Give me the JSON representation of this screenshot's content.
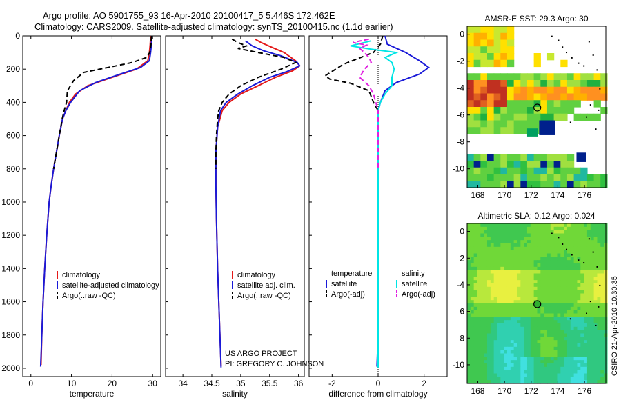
{
  "figure": {
    "title_line1": "Argo profile: AO 5901755_93 16-Apr-2010 20100417_5 5.446S 172.462E",
    "title_line2": "Climatology: CARS2009. Satellite-adjusted climatology: synTS_20100415.nc (1.1d earlier)",
    "credit_line1": "US ARGO PROJECT",
    "credit_line2": "PI: GREGORY C. JOHNSON",
    "side_stamp": "CSIRO 21-Apr-2010 10:30:35"
  },
  "colors": {
    "climatology": "#e41a1a",
    "satellite": "#1a1ad8",
    "argo": "#000000",
    "sat_sal": "#00e5e5",
    "argo_sal": "#e020e0"
  },
  "chart_data": [
    {
      "type": "line",
      "id": "temperature",
      "xlabel": "temperature",
      "ylabel": "",
      "xlim": [
        -2,
        32
      ],
      "ylim": [
        2050,
        0
      ],
      "xticks": [
        0,
        10,
        20,
        30
      ],
      "xtick_labels": [
        "0",
        "10",
        "20",
        "30"
      ],
      "yticks": [
        0,
        200,
        400,
        600,
        800,
        1000,
        1200,
        1400,
        1600,
        1800,
        2000
      ],
      "ytick_labels": [
        "0",
        "200",
        "400",
        "600",
        "800",
        "1000",
        "1200",
        "1400",
        "1600",
        "1800",
        "2000"
      ],
      "legend": [
        "climatology",
        "satellite-adjusted climatology",
        "Argo(..raw -QC)"
      ],
      "legend_position": "lower-right",
      "series": [
        {
          "name": "climatology",
          "color_key": "climatology",
          "dash": "solid",
          "points": [
            [
              29.5,
              0
            ],
            [
              29.4,
              50
            ],
            [
              29.2,
              100
            ],
            [
              28.8,
              150
            ],
            [
              26,
              200
            ],
            [
              20,
              250
            ],
            [
              14,
              300
            ],
            [
              11,
              350
            ],
            [
              9.5,
              400
            ],
            [
              8.6,
              450
            ],
            [
              7.8,
              500
            ],
            [
              7,
              600
            ],
            [
              6.3,
              700
            ],
            [
              5.6,
              800
            ],
            [
              5,
              900
            ],
            [
              4.5,
              1000
            ],
            [
              3.9,
              1200
            ],
            [
              3.4,
              1400
            ],
            [
              3.0,
              1600
            ],
            [
              2.7,
              1800
            ],
            [
              2.5,
              1980
            ]
          ]
        },
        {
          "name": "satellite",
          "color_key": "satellite",
          "dash": "solid",
          "points": [
            [
              29.8,
              0
            ],
            [
              29.7,
              50
            ],
            [
              29.5,
              100
            ],
            [
              29.2,
              150
            ],
            [
              27,
              190
            ],
            [
              22,
              230
            ],
            [
              16,
              280
            ],
            [
              12,
              330
            ],
            [
              9.8,
              400
            ],
            [
              8.6,
              450
            ],
            [
              7.8,
              500
            ],
            [
              7,
              600
            ],
            [
              6.3,
              700
            ],
            [
              5.6,
              800
            ],
            [
              5,
              900
            ],
            [
              4.5,
              1000
            ],
            [
              3.9,
              1200
            ],
            [
              3.4,
              1400
            ],
            [
              3.0,
              1600
            ],
            [
              2.7,
              1800
            ],
            [
              2.4,
              1990
            ]
          ]
        },
        {
          "name": "argo",
          "color_key": "argo",
          "dash": "dash",
          "points": [
            [
              29.7,
              0
            ],
            [
              29.6,
              50
            ],
            [
              29.3,
              100
            ],
            [
              28.5,
              130
            ],
            [
              25,
              160
            ],
            [
              19,
              190
            ],
            [
              13,
              220
            ],
            [
              10.5,
              270
            ],
            [
              9,
              330
            ],
            [
              8.8,
              400
            ],
            [
              8.2,
              450
            ],
            [
              7.7,
              500
            ],
            [
              7,
              600
            ],
            [
              6.3,
              700
            ],
            [
              5.6,
              800
            ]
          ]
        }
      ]
    },
    {
      "type": "line",
      "id": "salinity",
      "xlabel": "salinity",
      "ylabel": "",
      "xlim": [
        33.7,
        36.1
      ],
      "ylim": [
        2050,
        0
      ],
      "xticks": [
        34,
        34.5,
        35,
        35.5,
        36
      ],
      "xtick_labels": [
        "34",
        "34.5",
        "35",
        "35.5",
        "36"
      ],
      "legend": [
        "climatology",
        "satellite adj. clim.",
        "Argo(..raw -QC)"
      ],
      "legend_position": "lower-right",
      "series": [
        {
          "name": "climatology",
          "color_key": "climatology",
          "dash": "solid",
          "points": [
            [
              35.25,
              20
            ],
            [
              35.35,
              40
            ],
            [
              35.55,
              70
            ],
            [
              35.75,
              100
            ],
            [
              35.95,
              150
            ],
            [
              36.02,
              180
            ],
            [
              35.9,
              210
            ],
            [
              35.6,
              250
            ],
            [
              35.3,
              300
            ],
            [
              35.0,
              350
            ],
            [
              34.8,
              400
            ],
            [
              34.68,
              450
            ],
            [
              34.6,
              550
            ],
            [
              34.57,
              700
            ],
            [
              34.57,
              900
            ],
            [
              34.58,
              1100
            ],
            [
              34.6,
              1400
            ],
            [
              34.63,
              1700
            ],
            [
              34.66,
              1985
            ]
          ]
        },
        {
          "name": "satellite",
          "color_key": "satellite",
          "dash": "solid",
          "points": [
            [
              35.08,
              30
            ],
            [
              35.2,
              60
            ],
            [
              35.4,
              90
            ],
            [
              35.7,
              120
            ],
            [
              35.98,
              160
            ],
            [
              36.02,
              180
            ],
            [
              35.8,
              215
            ],
            [
              35.5,
              250
            ],
            [
              35.2,
              300
            ],
            [
              34.95,
              350
            ],
            [
              34.75,
              400
            ],
            [
              34.65,
              450
            ],
            [
              34.6,
              550
            ],
            [
              34.57,
              700
            ],
            [
              34.57,
              900
            ],
            [
              34.58,
              1100
            ],
            [
              34.6,
              1400
            ],
            [
              34.63,
              1700
            ],
            [
              34.66,
              1995
            ]
          ]
        },
        {
          "name": "argo",
          "color_key": "argo",
          "dash": "dash",
          "points": [
            [
              34.85,
              20
            ],
            [
              34.95,
              40
            ],
            [
              35.1,
              60
            ],
            [
              34.95,
              75
            ],
            [
              35.3,
              100
            ],
            [
              35.75,
              130
            ],
            [
              35.95,
              160
            ],
            [
              35.7,
              200
            ],
            [
              35.3,
              250
            ],
            [
              35.0,
              300
            ],
            [
              34.8,
              350
            ],
            [
              34.68,
              400
            ],
            [
              34.62,
              450
            ],
            [
              34.6,
              500
            ],
            [
              34.58,
              600
            ],
            [
              34.57,
              700
            ],
            [
              34.57,
              800
            ]
          ]
        }
      ]
    },
    {
      "type": "line",
      "id": "difference",
      "xlabel": "difference from climatology",
      "ylabel": "",
      "xlim": [
        -3,
        3
      ],
      "ylim": [
        2050,
        0
      ],
      "xticks": [
        -2,
        0,
        2
      ],
      "xtick_labels": [
        "-2",
        "0",
        "2"
      ],
      "legend": [
        "temperature",
        "satellite",
        "Argo(-adj)",
        "salinity",
        "satellite",
        "Argo(-adj)"
      ],
      "legend_position": "lower-center",
      "series": [
        {
          "name": "temperature satellite",
          "color_key": "satellite",
          "dash": "solid",
          "points": [
            [
              0.3,
              0
            ],
            [
              0.4,
              50
            ],
            [
              1.2,
              100
            ],
            [
              1.8,
              150
            ],
            [
              2.2,
              190
            ],
            [
              1.8,
              230
            ],
            [
              0.8,
              280
            ],
            [
              0.3,
              330
            ],
            [
              0.1,
              400
            ],
            [
              0,
              450
            ],
            [
              0,
              600
            ],
            [
              0,
              1000
            ],
            [
              0,
              1400
            ],
            [
              0,
              1800
            ],
            [
              -0.05,
              1990
            ]
          ]
        },
        {
          "name": "temperature argo",
          "color_key": "argo",
          "dash": "dash",
          "points": [
            [
              0.2,
              0
            ],
            [
              0.1,
              50
            ],
            [
              -0.2,
              100
            ],
            [
              -1.5,
              170
            ],
            [
              -2.3,
              240
            ],
            [
              -2.1,
              260
            ],
            [
              -1.2,
              285
            ],
            [
              -0.4,
              330
            ],
            [
              -0.2,
              400
            ],
            [
              0,
              450
            ],
            [
              0,
              600
            ],
            [
              0,
              800
            ]
          ]
        },
        {
          "name": "salinity satellite",
          "color_key": "sat_sal",
          "dash": "solid",
          "points": [
            [
              -0.3,
              30
            ],
            [
              -1.2,
              60
            ],
            [
              -0.3,
              80
            ],
            [
              0.8,
              100
            ],
            [
              0.3,
              130
            ],
            [
              0.6,
              160
            ],
            [
              0.7,
              200
            ],
            [
              0.6,
              250
            ],
            [
              0.6,
              300
            ],
            [
              0.3,
              350
            ],
            [
              0.1,
              400
            ],
            [
              0,
              450
            ],
            [
              0,
              600
            ],
            [
              0,
              1000
            ],
            [
              0,
              1400
            ],
            [
              0,
              1800
            ],
            [
              0,
              1995
            ]
          ]
        },
        {
          "name": "salinity argo",
          "color_key": "argo_sal",
          "dash": "dash",
          "points": [
            [
              -0.4,
              20
            ],
            [
              -1.1,
              40
            ],
            [
              -0.5,
              55
            ],
            [
              -0.8,
              75
            ],
            [
              -0.6,
              100
            ],
            [
              -0.4,
              130
            ],
            [
              -0.3,
              160
            ],
            [
              -0.6,
              200
            ],
            [
              -0.8,
              250
            ],
            [
              -0.4,
              300
            ],
            [
              -0.2,
              350
            ],
            [
              -0.1,
              400
            ],
            [
              0,
              450
            ],
            [
              0,
              600
            ],
            [
              0,
              800
            ]
          ]
        }
      ]
    }
  ],
  "maps": [
    {
      "id": "sst",
      "title": "AMSR-E SST: 29.3 Argo: 30",
      "xlim": [
        167.2,
        177.6
      ],
      "ylim": [
        -11.4,
        0.6
      ],
      "xtick_labels": [
        "168",
        "170",
        "172",
        "174",
        "176"
      ],
      "xticks": [
        168,
        170,
        172,
        174,
        176
      ],
      "ytick_labels": [
        "0",
        "-2",
        "-4",
        "-6",
        "-8",
        "-10"
      ],
      "yticks": [
        0,
        -2,
        -4,
        -6,
        -8,
        -10
      ],
      "marker": {
        "lon": 172.46,
        "lat": -5.45,
        "filled": false
      }
    },
    {
      "id": "sla",
      "title": "Altimetric SLA: 0.12 Argo: 0.024",
      "xlim": [
        167.2,
        177.6
      ],
      "ylim": [
        -11.4,
        0.6
      ],
      "xtick_labels": [
        "168",
        "170",
        "172",
        "174",
        "176"
      ],
      "xticks": [
        168,
        170,
        172,
        174,
        176
      ],
      "ytick_labels": [
        "0",
        "-2",
        "-4",
        "-6",
        "-8",
        "-10"
      ],
      "yticks": [
        0,
        -2,
        -4,
        -6,
        -8,
        -10
      ],
      "marker": {
        "lon": 172.46,
        "lat": -5.45,
        "filled": true
      }
    }
  ]
}
